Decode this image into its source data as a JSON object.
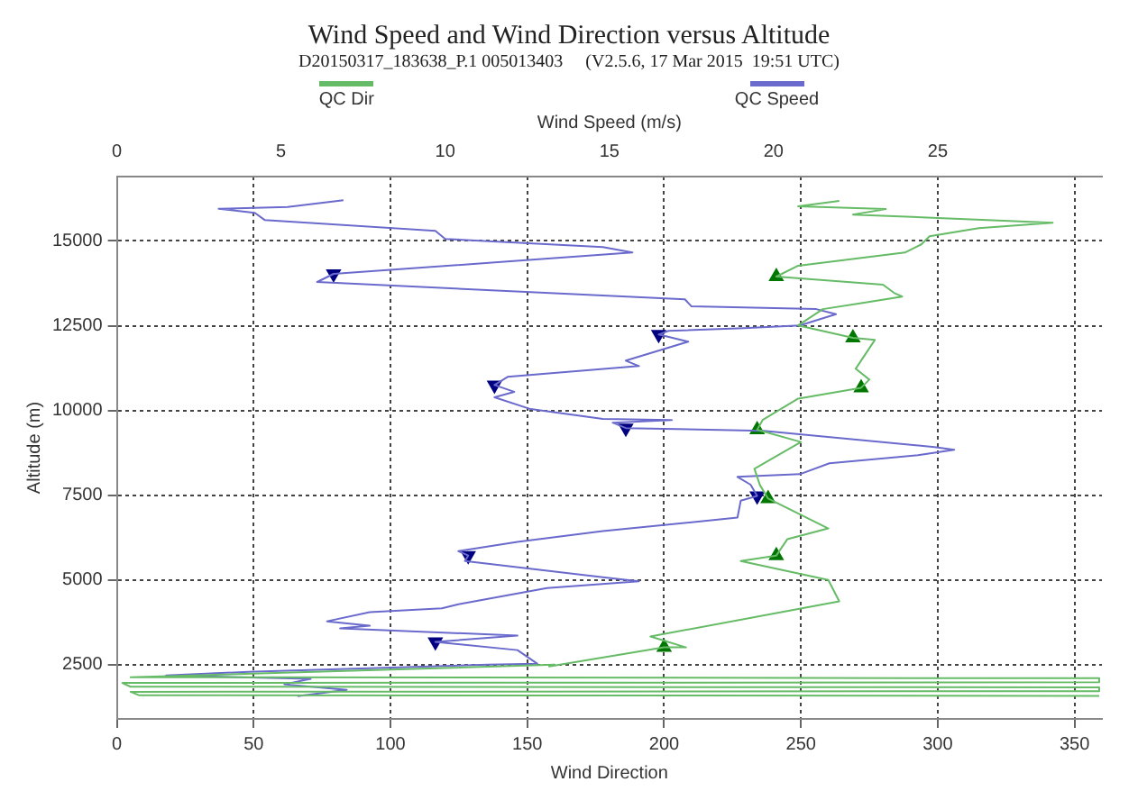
{
  "chart_data": {
    "type": "line",
    "title": "Wind Speed and Wind Direction versus Altitude",
    "subtitle": "D20150317_183638_P.1 005013403     (V2.5.6, 17 Mar 2015  19:51 UTC)",
    "xlabel": "Wind Direction",
    "x2label": "Wind Speed (m/s)",
    "ylabel": "Altitude (m)",
    "xlim": [
      0,
      360
    ],
    "xticks": [
      0,
      50,
      100,
      150,
      200,
      250,
      300,
      350
    ],
    "x2lim": [
      0,
      30
    ],
    "x2ticks": [
      0,
      5,
      10,
      15,
      20,
      25
    ],
    "ylim": [
      900,
      16900
    ],
    "yticks": [
      2500,
      5000,
      7500,
      10000,
      12500,
      15000
    ],
    "grid": true,
    "legend": "top",
    "marker": "none",
    "line_style": "solid",
    "series": [
      {
        "name": "QC Dir",
        "color": "#66bb66",
        "x": [
          264,
          249,
          281,
          269,
          342,
          315,
          297,
          294,
          288,
          249,
          241,
          280,
          284,
          287,
          271,
          258,
          249,
          269,
          277,
          270,
          275,
          272,
          249,
          236,
          234,
          250,
          233,
          235,
          238,
          260,
          245,
          241,
          228,
          260,
          264,
          195,
          208,
          200,
          158,
          160,
          5,
          359,
          359,
          2,
          5,
          359,
          359,
          5,
          8,
          359
        ],
        "values": [
          16180,
          16020,
          15940,
          15780,
          15540,
          15380,
          15140,
          14900,
          14660,
          14270,
          13950,
          13710,
          13470,
          13360,
          13150,
          12990,
          12510,
          12140,
          12080,
          11230,
          10910,
          10670,
          10350,
          9720,
          9430,
          9070,
          8280,
          7800,
          7400,
          6520,
          6200,
          5720,
          5560,
          5000,
          4370,
          3330,
          3010,
          3010,
          2450,
          2500,
          2130,
          2100,
          1980,
          1960,
          1850,
          1830,
          1720,
          1700,
          1600,
          1580
        ]
      },
      {
        "name": "QC Speed",
        "color": "#6a6acd",
        "axis": "x2",
        "x": [
          6.9,
          5.2,
          3.1,
          4.2,
          4.5,
          9.7,
          10.0,
          14.8,
          15.7,
          11.7,
          6.6,
          6.1,
          14.8,
          17.3,
          17.5,
          21.3,
          21.9,
          20.8,
          19.1,
          16.8,
          16.5,
          17.4,
          15.5,
          15.9,
          11.9,
          11.5,
          12.1,
          11.5,
          12.6,
          14.8,
          16.9,
          15.1,
          15.5,
          19.7,
          24.9,
          25.5,
          24.4,
          21.7,
          20.8,
          18.9,
          19.3,
          19.5,
          19.0,
          18.9,
          14.8,
          12.2,
          10.4,
          10.7,
          10.6,
          14.8,
          15.9,
          13.1,
          10.4,
          9.9,
          7.7,
          6.4,
          7.7,
          6.8,
          12.2,
          9.7,
          12.2,
          12.8,
          11.3,
          4.0,
          1.5,
          5.9,
          5.1,
          7.0,
          5.5
        ],
        "values": [
          16200,
          16000,
          15950,
          15830,
          15620,
          15300,
          15060,
          14820,
          14660,
          14380,
          14030,
          13790,
          13390,
          13280,
          13070,
          12990,
          12840,
          12510,
          12430,
          12350,
          12240,
          12030,
          11470,
          11310,
          10990,
          10750,
          10550,
          10390,
          10040,
          9750,
          9720,
          9640,
          9480,
          9400,
          8920,
          8840,
          8680,
          8440,
          8120,
          8040,
          7810,
          7480,
          7340,
          6840,
          6440,
          6120,
          5850,
          5720,
          5560,
          5080,
          4960,
          4760,
          4280,
          4160,
          4050,
          3780,
          3650,
          3570,
          3360,
          3170,
          2930,
          2530,
          2500,
          2290,
          2180,
          2080,
          1920,
          1760,
          1570
        ]
      },
      {
        "type": "scatter",
        "marker": "triangle",
        "color": "#007700",
        "x": [
          241,
          269,
          272,
          234,
          238,
          241,
          200
        ],
        "values": [
          13950,
          12140,
          10670,
          9430,
          7400,
          5720,
          3010
        ]
      },
      {
        "type": "scatter",
        "marker": "triangle",
        "color": "#000080",
        "axis": "x2",
        "x": [
          6.6,
          16.5,
          11.5,
          15.5,
          19.5,
          10.7,
          9.7
        ],
        "values": [
          14030,
          12240,
          10750,
          9480,
          7480,
          5720,
          3170
        ]
      }
    ]
  }
}
